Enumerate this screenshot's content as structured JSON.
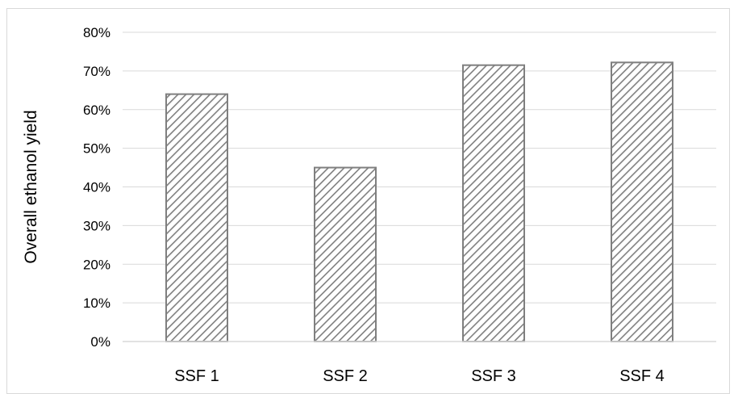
{
  "chart_data": {
    "type": "bar",
    "title": "",
    "xlabel": "",
    "ylabel": "Overall ethanol yield",
    "categories": [
      "SSF 1",
      "SSF 2",
      "SSF 3",
      "SSF 4"
    ],
    "values": [
      0.64,
      0.45,
      0.715,
      0.722
    ],
    "ylim": [
      0,
      0.8
    ],
    "yticks": [
      0,
      0.1,
      0.2,
      0.3,
      0.4,
      0.5,
      0.6,
      0.7,
      0.8
    ],
    "ytick_labels": [
      "0%",
      "10%",
      "20%",
      "30%",
      "40%",
      "50%",
      "60%",
      "70%",
      "80%"
    ],
    "grid": true,
    "bar_fill": "diagonal-hatch",
    "colors": {
      "bar_stroke": "#7f7f7f",
      "hatch": "#7f7f7f",
      "grid": "#d9d9d9",
      "axis": "#d9d9d9",
      "frame": "#d9d9d9"
    }
  }
}
